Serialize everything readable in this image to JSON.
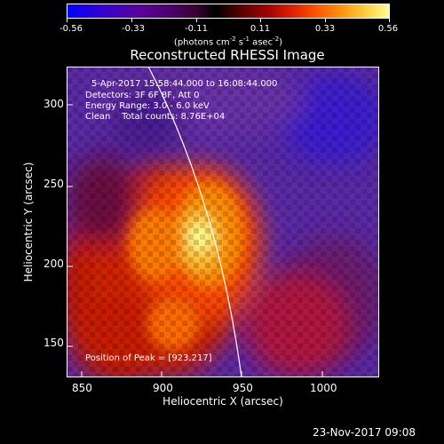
{
  "colorbar": {
    "labels": [
      "-0.56",
      "-0.33",
      "-0.11",
      "0.11",
      "0.33",
      "0.56"
    ],
    "units_prefix": "(photons cm",
    "units_exp1": "-2",
    "units_mid": " s",
    "units_exp2": "-1",
    "units_mid2": " asec",
    "units_exp3": "-2",
    "units_suffix": ")",
    "range": [
      -0.56,
      0.56
    ]
  },
  "plot": {
    "title": "Reconstructed RHESSI Image",
    "xlabel": "Heliocentric X (arcsec)",
    "ylabel": "Heliocentric Y (arcsec)",
    "xticks": [
      "850",
      "900",
      "950",
      "1000"
    ],
    "yticks": [
      "150",
      "200",
      "250",
      "300"
    ],
    "annotations": {
      "time": "5-Apr-2017 15:58:44.000 to 16:08:44.000",
      "detectors": "Detectors: 3F 6F 8F, Att 0",
      "energy": "Energy Range: 3.0 - 6.0 keV",
      "method": "Clean    Total counts: 8.76E+04",
      "peak": "Position of Peak = [923,217]"
    }
  },
  "timestamp": "23-Nov-2017 09:08",
  "chart_data": {
    "type": "heatmap",
    "title": "Reconstructed RHESSI Image",
    "xlabel": "Heliocentric X (arcsec)",
    "ylabel": "Heliocentric Y (arcsec)",
    "xlim": [
      836,
      1031
    ],
    "ylim": [
      133,
      328
    ],
    "value_range": [
      -0.56,
      0.56
    ],
    "peak": [
      923,
      217
    ],
    "limb_curve": [
      [
        880,
        328
      ],
      [
        905,
        287
      ],
      [
        925,
        250
      ],
      [
        940,
        210
      ],
      [
        953,
        170
      ],
      [
        962,
        133
      ]
    ]
  }
}
